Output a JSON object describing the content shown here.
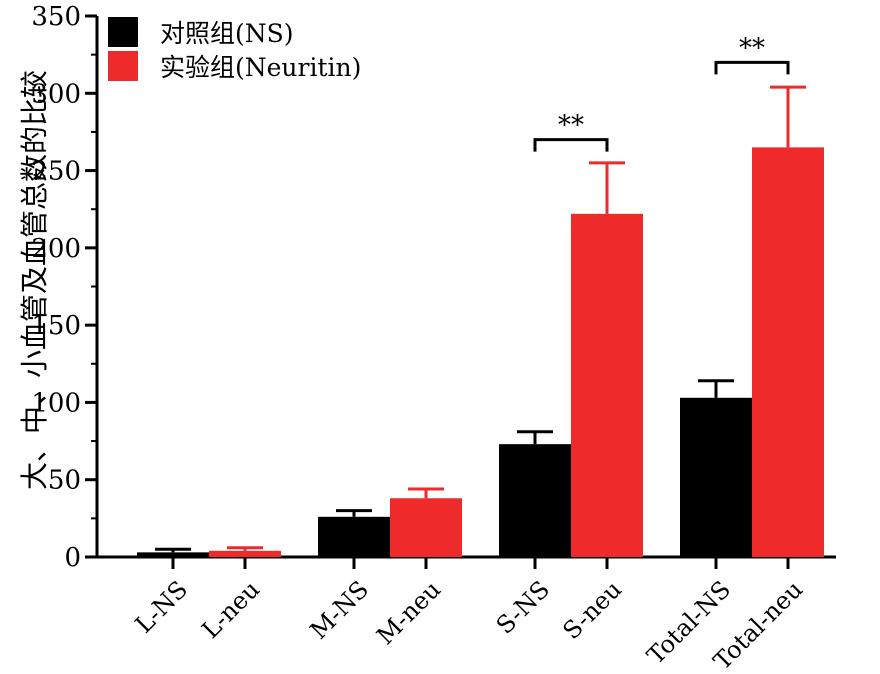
{
  "chart_data": {
    "type": "bar",
    "ylabel": "大、中、小血管及血管总数的比较",
    "ylim": [
      0,
      350
    ],
    "yticks": [
      0,
      50,
      100,
      150,
      200,
      250,
      300,
      350
    ],
    "minor_ticks": true,
    "grid": false,
    "legend_position": "top-left",
    "group_colors": [
      "#000000",
      "#ee2a2a"
    ],
    "legend": [
      {
        "label": "对照组(NS)",
        "color": "#000000"
      },
      {
        "label": "实验组(Neuritin)",
        "color": "#ee2a2a"
      }
    ],
    "bars": [
      {
        "category": "L-NS",
        "group": 0,
        "value": 3,
        "error": 2
      },
      {
        "category": "L-neu",
        "group": 1,
        "value": 4,
        "error": 2
      },
      {
        "category": "M-NS",
        "group": 0,
        "value": 26,
        "error": 4
      },
      {
        "category": "M-neu",
        "group": 1,
        "value": 38,
        "error": 6
      },
      {
        "category": "S-NS",
        "group": 0,
        "value": 73,
        "error": 8
      },
      {
        "category": "S-neu",
        "group": 1,
        "value": 222,
        "error": 33
      },
      {
        "category": "Total-NS",
        "group": 0,
        "value": 103,
        "error": 11
      },
      {
        "category": "Total-neu",
        "group": 1,
        "value": 265,
        "error": 39
      }
    ],
    "significance": [
      {
        "pair": [
          4,
          5
        ],
        "label": "**",
        "level": 270
      },
      {
        "pair": [
          6,
          7
        ],
        "label": "**",
        "level": 320
      }
    ]
  }
}
